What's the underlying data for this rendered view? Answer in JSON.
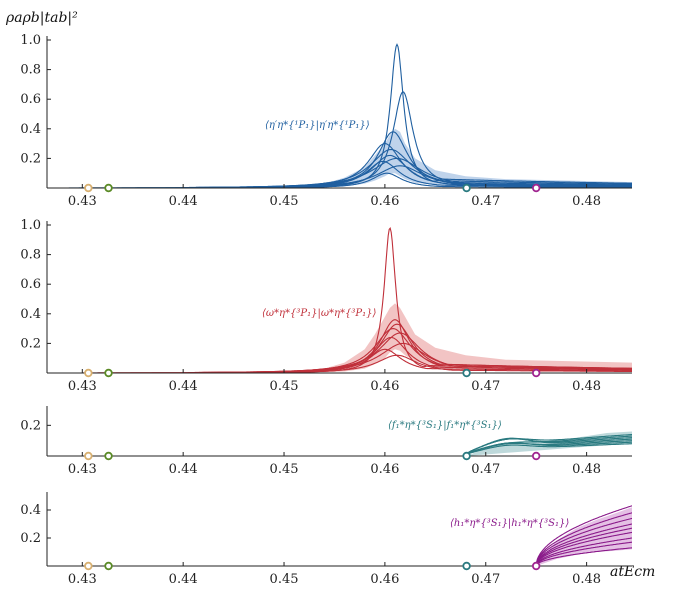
{
  "chart_data": {
    "type": "line",
    "ylabel": "ρaρb|tab|²",
    "xlabel": "atEcm",
    "xlim": [
      0.4265,
      0.4845
    ],
    "xticks": [
      0.43,
      0.44,
      0.45,
      0.46,
      0.47,
      0.48
    ],
    "xtick_labels": [
      "0.43",
      "0.44",
      "0.45",
      "0.46",
      "0.47",
      "0.48"
    ],
    "thresholds": [
      {
        "x": 0.4306,
        "color": "#d8b070"
      },
      {
        "x": 0.4326,
        "color": "#5a8a25"
      },
      {
        "x": 0.4681,
        "color": "#2a7a80"
      },
      {
        "x": 0.475,
        "color": "#a02590"
      }
    ],
    "panels": [
      {
        "annotation": "⟨η′η*{¹P₁}|η′η*{¹P₁}⟩",
        "color": "#1f5fa0",
        "band_color": "#a9c4e4",
        "ylim": [
          0,
          1.0
        ],
        "yticks": [
          0.2,
          0.4,
          0.6,
          0.8,
          1.0
        ],
        "ytick_labels": [
          "0.2",
          "0.4",
          "0.6",
          "0.8",
          "1.0"
        ],
        "band": {
          "x": [
            0.427,
            0.45,
            0.454,
            0.456,
            0.458,
            0.459,
            0.46,
            0.4605,
            0.461,
            0.4615,
            0.462,
            0.463,
            0.465,
            0.468,
            0.472,
            0.4845
          ],
          "lo": [
            0,
            0,
            0.005,
            0.01,
            0.03,
            0.05,
            0.08,
            0.1,
            0.1,
            0.08,
            0.06,
            0.035,
            0.02,
            0.012,
            0.01,
            0.01
          ],
          "hi": [
            0,
            0.01,
            0.03,
            0.07,
            0.14,
            0.22,
            0.3,
            0.36,
            0.4,
            0.38,
            0.3,
            0.2,
            0.12,
            0.08,
            0.06,
            0.04
          ]
        },
        "series": [
          {
            "peak": 0.4612,
            "height": 0.97,
            "width": 0.0008,
            "tail": 0.05
          },
          {
            "peak": 0.4618,
            "height": 0.65,
            "width": 0.0012,
            "tail": 0.06
          },
          {
            "peak": 0.4608,
            "height": 0.38,
            "width": 0.0018,
            "tail": 0.04
          },
          {
            "peak": 0.46,
            "height": 0.3,
            "width": 0.002,
            "tail": 0.03
          },
          {
            "peak": 0.4606,
            "height": 0.26,
            "width": 0.0025,
            "tail": 0.03
          },
          {
            "peak": 0.4605,
            "height": 0.22,
            "width": 0.0022,
            "tail": 0.02
          },
          {
            "peak": 0.4612,
            "height": 0.2,
            "width": 0.003,
            "tail": 0.03
          },
          {
            "peak": 0.4598,
            "height": 0.18,
            "width": 0.002,
            "tail": 0.02
          },
          {
            "peak": 0.4615,
            "height": 0.15,
            "width": 0.0028,
            "tail": 0.02
          },
          {
            "peak": 0.4602,
            "height": 0.1,
            "width": 0.0018,
            "tail": 0.01
          }
        ]
      },
      {
        "annotation": "⟨ω*η*{³P₁}|ω*η*{³P₁}⟩",
        "color": "#c0303a",
        "band_color": "#eeb0b0",
        "ylim": [
          0,
          1.0
        ],
        "yticks": [
          0.2,
          0.4,
          0.6,
          0.8,
          1.0
        ],
        "ytick_labels": [
          "0.2",
          "0.4",
          "0.6",
          "0.8",
          "1.0"
        ],
        "band": {
          "x": [
            0.427,
            0.45,
            0.454,
            0.456,
            0.458,
            0.459,
            0.46,
            0.4605,
            0.461,
            0.4615,
            0.462,
            0.463,
            0.465,
            0.468,
            0.472,
            0.4845
          ],
          "lo": [
            0,
            0,
            0.005,
            0.01,
            0.03,
            0.06,
            0.1,
            0.14,
            0.16,
            0.15,
            0.12,
            0.08,
            0.05,
            0.03,
            0.02,
            0.02
          ],
          "hi": [
            0,
            0.01,
            0.03,
            0.07,
            0.16,
            0.26,
            0.38,
            0.44,
            0.47,
            0.44,
            0.38,
            0.26,
            0.17,
            0.12,
            0.09,
            0.07
          ]
        },
        "series": [
          {
            "peak": 0.4605,
            "height": 0.98,
            "width": 0.0007,
            "tail": 0.05
          },
          {
            "peak": 0.461,
            "height": 0.36,
            "width": 0.0018,
            "tail": 0.05
          },
          {
            "peak": 0.4612,
            "height": 0.33,
            "width": 0.002,
            "tail": 0.06
          },
          {
            "peak": 0.4608,
            "height": 0.3,
            "width": 0.0022,
            "tail": 0.05
          },
          {
            "peak": 0.4615,
            "height": 0.27,
            "width": 0.0025,
            "tail": 0.06
          },
          {
            "peak": 0.4606,
            "height": 0.24,
            "width": 0.002,
            "tail": 0.04
          },
          {
            "peak": 0.4618,
            "height": 0.2,
            "width": 0.0028,
            "tail": 0.05
          },
          {
            "peak": 0.46,
            "height": 0.16,
            "width": 0.002,
            "tail": 0.03
          },
          {
            "peak": 0.4612,
            "height": 0.12,
            "width": 0.0024,
            "tail": 0.02
          }
        ]
      },
      {
        "annotation": "⟨f₁*η*{³S₁}|f₁*η*{³S₁}⟩",
        "color": "#2a7a80",
        "band_color": "#a8cccf",
        "ylim": [
          0,
          0.3
        ],
        "yticks": [
          0.2
        ],
        "ytick_labels": [
          "0.2"
        ],
        "threshold": 0.4681,
        "band": {
          "x": [
            0.4681,
            0.47,
            0.472,
            0.474,
            0.476,
            0.478,
            0.48,
            0.482,
            0.4845
          ],
          "lo": [
            0,
            0.01,
            0.02,
            0.03,
            0.04,
            0.05,
            0.06,
            0.07,
            0.08
          ],
          "hi": [
            0,
            0.05,
            0.08,
            0.1,
            0.1,
            0.11,
            0.13,
            0.15,
            0.16
          ]
        },
        "series": [
          {
            "end": 0.09,
            "bump": 0.04
          },
          {
            "end": 0.1,
            "bump": 0.03
          },
          {
            "end": 0.12,
            "bump": 0.05
          },
          {
            "end": 0.13,
            "bump": 0.02
          },
          {
            "end": 0.08,
            "bump": 0.03
          },
          {
            "end": 0.14,
            "bump": 0.04
          },
          {
            "end": 0.11,
            "bump": 0.06
          }
        ]
      },
      {
        "annotation": "⟨h₁*η*{³S₁}|h₁*η*{³S₁}⟩",
        "color": "#8a1a8a",
        "band_color": "#dbaadb",
        "ylim": [
          0,
          0.5
        ],
        "yticks": [
          0.2,
          0.4
        ],
        "ytick_labels": [
          "0.2",
          "0.4"
        ],
        "threshold": 0.475,
        "band": {
          "x": [
            0.475,
            0.477,
            0.479,
            0.481,
            0.483,
            0.4845
          ],
          "lo": [
            0,
            0.05,
            0.08,
            0.1,
            0.11,
            0.12
          ],
          "hi": [
            0,
            0.18,
            0.27,
            0.33,
            0.38,
            0.42
          ]
        },
        "series": [
          {
            "end": 0.43,
            "bump": 0
          },
          {
            "end": 0.38,
            "bump": 0
          },
          {
            "end": 0.34,
            "bump": 0
          },
          {
            "end": 0.3,
            "bump": 0
          },
          {
            "end": 0.27,
            "bump": 0
          },
          {
            "end": 0.24,
            "bump": 0
          },
          {
            "end": 0.2,
            "bump": 0
          },
          {
            "end": 0.17,
            "bump": 0
          },
          {
            "end": 0.13,
            "bump": 0
          }
        ]
      }
    ]
  }
}
